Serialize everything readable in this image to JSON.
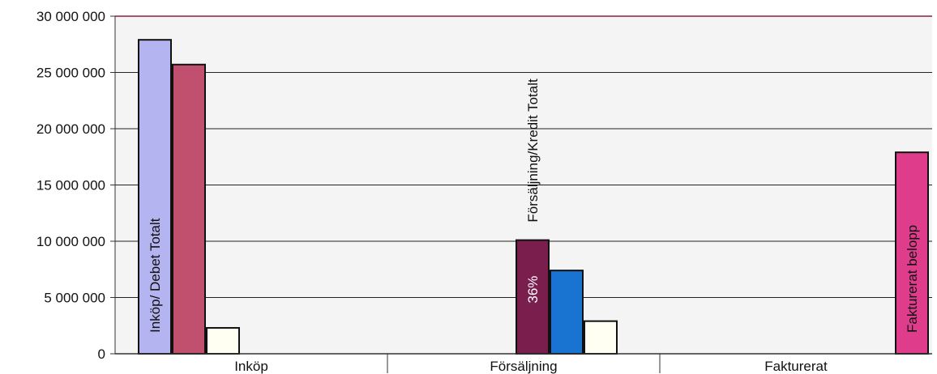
{
  "chart_data": {
    "type": "bar",
    "title": "",
    "xlabel": "",
    "ylabel": "",
    "ylim": [
      0,
      30000000
    ],
    "yticks": [
      {
        "value": 0,
        "label": "0"
      },
      {
        "value": 5000000,
        "label": "5 000 000"
      },
      {
        "value": 10000000,
        "label": "10 000 000"
      },
      {
        "value": 15000000,
        "label": "15 000 000"
      },
      {
        "value": 20000000,
        "label": "20 000 000"
      },
      {
        "value": 25000000,
        "label": "25 000 000"
      },
      {
        "value": 30000000,
        "label": "30 000 000"
      }
    ],
    "grid": true,
    "legend": "none",
    "categories": [
      "Inköp",
      "Försäljning",
      "Fakturerat"
    ],
    "groups": [
      {
        "category": "Inköp",
        "bars": [
          {
            "value": 27900000,
            "color": "#b4b4f0",
            "label": "Inköp/ Debet Totalt",
            "label_color": "#111111",
            "label_placement": "inside"
          },
          {
            "value": 25700000,
            "color": "#c0506e",
            "label": "",
            "label_color": "",
            "label_placement": ""
          },
          {
            "value": 2300000,
            "color": "#fffff2",
            "label": "",
            "label_color": "",
            "label_placement": ""
          }
        ]
      },
      {
        "category": "Försäljning",
        "bars": [
          {
            "value": 10100000,
            "color": "#7a1e4e",
            "label": "36%",
            "label_color": "#ffffff",
            "label_placement": "inside"
          },
          {
            "value": 7400000,
            "color": "#1874d0",
            "label": "",
            "label_color": "",
            "label_placement": ""
          },
          {
            "value": 2900000,
            "color": "#fffff2",
            "label": "",
            "label_color": "",
            "label_placement": ""
          }
        ],
        "group_label": "Försäljning/Kredit Totalt"
      },
      {
        "category": "Fakturerat",
        "bars": [
          {
            "value": 17900000,
            "color": "#e03c8c",
            "label": "Fakturerat  belopp",
            "label_color": "#111111",
            "label_placement": "inside"
          }
        ]
      }
    ],
    "colors": {
      "plot_background": "#f4f4f4",
      "grid": "#222222",
      "top_border": "#8c1e46",
      "axis": "#333333"
    }
  }
}
